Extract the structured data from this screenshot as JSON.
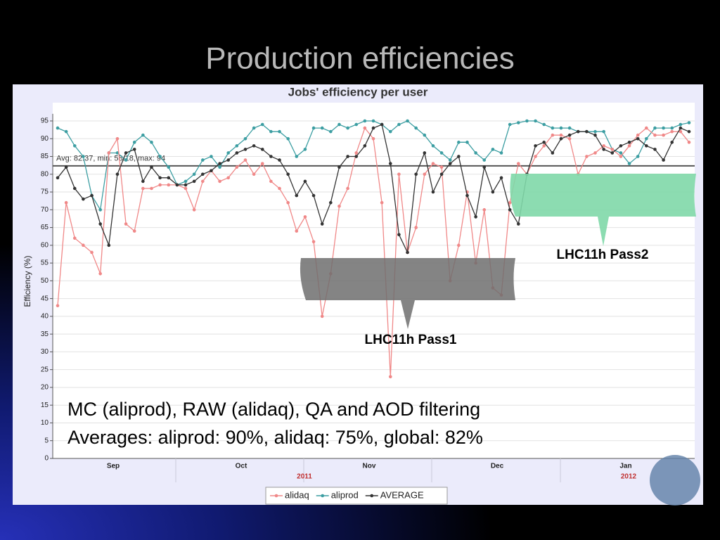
{
  "slide_title": "Production efficiencies",
  "chart_data": {
    "type": "line",
    "title": "Jobs' efficiency per user",
    "y_label": "Efficiency (%)",
    "ylim": [
      0,
      97
    ],
    "yticks": [
      0,
      5,
      10,
      15,
      20,
      25,
      30,
      35,
      40,
      45,
      50,
      55,
      60,
      65,
      70,
      75,
      80,
      85,
      90,
      95
    ],
    "grid": true,
    "x_labels": [
      "Sep",
      "Oct",
      "Nov",
      "Dec",
      "Jan"
    ],
    "year_labels": [
      "2011",
      "2012"
    ],
    "average_line": 82.37,
    "average_annotation": "Avg: 82.37, min: 58.18, max: 94",
    "series": [
      {
        "name": "alidaq",
        "color": "#f08888",
        "values": [
          43,
          72,
          62,
          60,
          58,
          52,
          86,
          90,
          66,
          64,
          76,
          76,
          77,
          77,
          77,
          76,
          70,
          78,
          81,
          78,
          79,
          82,
          84,
          80,
          83,
          78,
          76,
          72,
          64,
          68,
          61,
          40,
          52,
          71,
          76,
          86,
          93,
          90,
          72,
          23,
          80,
          58,
          65,
          80,
          83,
          82,
          50,
          60,
          75,
          55,
          70,
          48,
          46,
          72,
          83,
          80,
          85,
          88,
          91,
          91,
          90,
          80,
          85,
          86,
          88,
          87,
          85,
          88,
          91,
          93,
          91,
          91,
          92,
          92,
          89
        ]
      },
      {
        "name": "aliprod",
        "color": "#3c9ea2",
        "values": [
          93,
          92,
          88,
          85,
          74,
          70,
          86,
          86,
          84,
          89,
          91,
          89,
          85,
          82,
          77,
          78,
          80,
          84,
          85,
          82,
          86,
          88,
          90,
          93,
          94,
          92,
          92,
          90,
          85,
          87,
          93,
          93,
          92,
          94,
          93,
          94,
          95,
          95,
          94,
          92,
          94,
          95,
          93,
          91,
          88,
          86,
          84,
          89,
          89,
          86,
          84,
          87,
          86,
          94,
          94.5,
          95,
          95,
          94,
          93,
          93,
          93,
          92,
          92,
          92,
          92,
          87,
          86,
          83,
          85,
          90,
          93,
          93,
          93,
          94,
          94.5
        ]
      },
      {
        "name": "AVERAGE",
        "color": "#333333",
        "values": [
          79,
          82,
          76,
          73,
          74,
          66,
          60,
          80,
          86,
          87,
          78,
          82,
          79,
          79,
          77,
          77,
          78,
          80,
          81,
          83,
          84,
          86,
          87,
          88,
          87,
          85,
          84,
          80,
          74,
          78,
          74,
          66,
          72,
          82,
          85,
          85,
          88,
          93,
          94,
          83,
          63,
          58,
          80,
          86,
          75,
          80,
          83,
          85,
          74,
          68,
          82,
          75,
          79,
          70,
          66,
          80,
          88,
          89,
          86,
          90,
          91,
          92,
          92,
          91,
          87,
          86,
          88,
          89,
          90,
          88,
          87,
          84,
          89,
          93,
          92
        ]
      }
    ],
    "annotations": [
      "LHC11h Pass1",
      "LHC11h Pass2"
    ],
    "notes": [
      "MC (aliprod), RAW (alidaq), QA and AOD filtering",
      "Averages: aliprod: 90%, alidaq: 75%, global: 82%"
    ]
  }
}
